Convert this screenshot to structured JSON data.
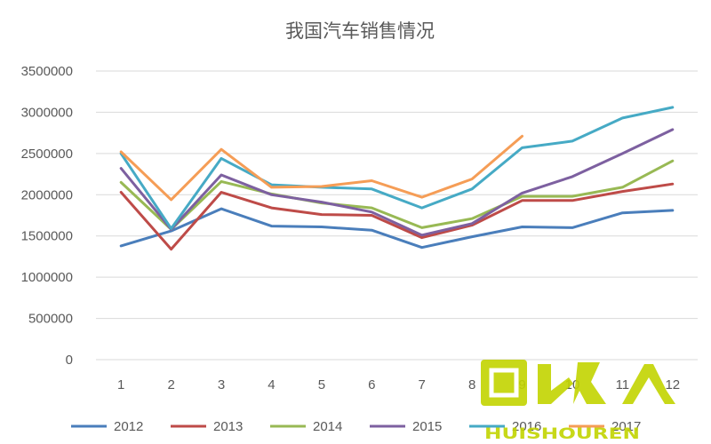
{
  "chart_data": {
    "type": "line",
    "title": "我国汽车销售情况",
    "xlabel": "",
    "ylabel": "",
    "categories": [
      "1",
      "2",
      "3",
      "4",
      "5",
      "6",
      "7",
      "8",
      "9",
      "10",
      "11",
      "12"
    ],
    "ylim": [
      0,
      3500000
    ],
    "yticks": [
      "0",
      "500000",
      "1000000",
      "1500000",
      "2000000",
      "2500000",
      "3000000",
      "3500000"
    ],
    "grid": true,
    "legend_position": "bottom",
    "series": [
      {
        "name": "2012",
        "color": "#4a7ebb",
        "values": [
          1380000,
          1560000,
          1830000,
          1620000,
          1610000,
          1570000,
          1360000,
          1490000,
          1610000,
          1600000,
          1780000,
          1810000
        ]
      },
      {
        "name": "2013",
        "color": "#be4b48",
        "values": [
          2030000,
          1340000,
          2030000,
          1840000,
          1760000,
          1750000,
          1480000,
          1630000,
          1930000,
          1930000,
          2040000,
          2130000
        ]
      },
      {
        "name": "2014",
        "color": "#98b954",
        "values": [
          2150000,
          1580000,
          2160000,
          2010000,
          1900000,
          1840000,
          1600000,
          1710000,
          1980000,
          1980000,
          2090000,
          2410000
        ]
      },
      {
        "name": "2015",
        "color": "#7d60a0",
        "values": [
          2320000,
          1580000,
          2240000,
          2000000,
          1910000,
          1790000,
          1510000,
          1650000,
          2020000,
          2220000,
          2500000,
          2790000
        ]
      },
      {
        "name": "2016",
        "color": "#46aac5",
        "values": [
          2500000,
          1590000,
          2440000,
          2120000,
          2090000,
          2070000,
          1840000,
          2070000,
          2570000,
          2650000,
          2930000,
          3060000
        ]
      },
      {
        "name": "2017",
        "color": "#f59d56",
        "values": [
          2520000,
          1940000,
          2550000,
          2090000,
          2100000,
          2170000,
          1970000,
          2190000,
          2710000,
          null,
          null,
          null
        ]
      }
    ]
  },
  "watermark": {
    "main_glyphs": "回收",
    "sub_text": "HUISHOUREN"
  }
}
